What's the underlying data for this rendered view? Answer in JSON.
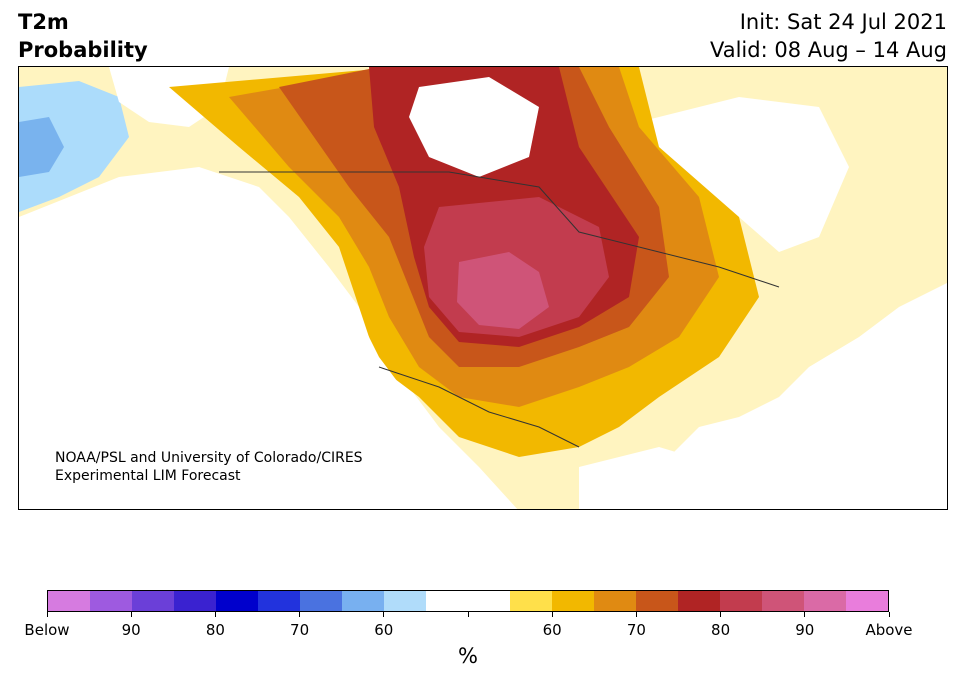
{
  "header": {
    "variable": "T2m",
    "product": "Probability",
    "init": "Init: Sat 24 Jul 2021",
    "valid": "Valid: 08 Aug – 14 Aug"
  },
  "credit": {
    "line1": "NOAA/PSL and University of Colorado/CIRES",
    "line2": "Experimental LIM Forecast"
  },
  "colorbar": {
    "unit": "%",
    "colors": [
      "#d67be0",
      "#9e5ae0",
      "#6b3fd8",
      "#3a22d0",
      "#0000cc",
      "#2233dd",
      "#4a72e0",
      "#78b0f0",
      "#b0dcfa",
      "#ffffff",
      "#ffffff",
      "#ffe04a",
      "#f2b800",
      "#e08a12",
      "#c8561a",
      "#b02424",
      "#c23c4e",
      "#cf5478",
      "#da6aa6",
      "#e97ddc"
    ],
    "labels": [
      "Below",
      "90",
      "80",
      "70",
      "60",
      "",
      "60",
      "70",
      "80",
      "90",
      "Above"
    ]
  },
  "legend_meaning": {
    "cool_side": "Probability of below-normal temperature",
    "warm_side": "Probability of above-normal temperature"
  }
}
